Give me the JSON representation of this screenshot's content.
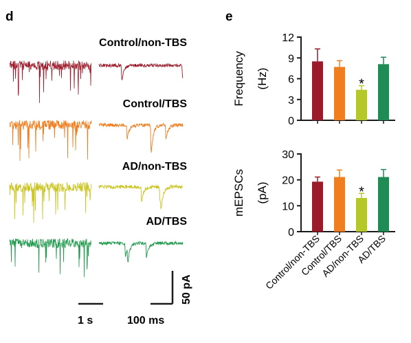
{
  "panel_d": {
    "letter": "d",
    "conditions": [
      {
        "label": "Control/non-TBS",
        "color": "#9b1b2a",
        "seed": 11
      },
      {
        "label": "Control/TBS",
        "color": "#f07d1e",
        "seed": 23
      },
      {
        "label": "AD/non-TBS",
        "color": "#c9c31c",
        "seed": 37
      },
      {
        "label": "AD/TBS",
        "color": "#1f9a4c",
        "seed": 53
      }
    ],
    "scale_bars": {
      "time_long": "1 s",
      "time_short": "100 ms",
      "amplitude": "50 pA"
    }
  },
  "panel_e": {
    "letter": "e",
    "significance_marker": "*"
  },
  "chart_data": [
    {
      "type": "bar",
      "categories": [
        "Control/non-TBS",
        "Control/TBS",
        "AD/non-TBS",
        "AD/TBS"
      ],
      "values": [
        8.5,
        7.7,
        4.4,
        8.1
      ],
      "errors": [
        1.8,
        0.9,
        0.6,
        1.0
      ],
      "colors": [
        "#9b1b2a",
        "#f07d1e",
        "#b5c82a",
        "#1f8b55"
      ],
      "significant": [
        false,
        false,
        true,
        false
      ],
      "ylabel_line1": "Frequency",
      "ylabel_line2": "(Hz)",
      "ylim": [
        0,
        12
      ],
      "yticks": [
        0,
        3,
        6,
        9,
        12
      ]
    },
    {
      "type": "bar",
      "categories": [
        "Control/non-TBS",
        "Control/TBS",
        "AD/non-TBS",
        "AD/TBS"
      ],
      "values": [
        19.3,
        21.1,
        13.0,
        21.1
      ],
      "errors": [
        1.8,
        2.7,
        1.8,
        2.9
      ],
      "colors": [
        "#9b1b2a",
        "#f07d1e",
        "#b5c82a",
        "#1f8b55"
      ],
      "significant": [
        false,
        false,
        true,
        false
      ],
      "ylabel_line1": "mEPSCs",
      "ylabel_line2": "(pA)",
      "ylim": [
        0,
        30
      ],
      "yticks": [
        0,
        10,
        20,
        30
      ]
    }
  ]
}
